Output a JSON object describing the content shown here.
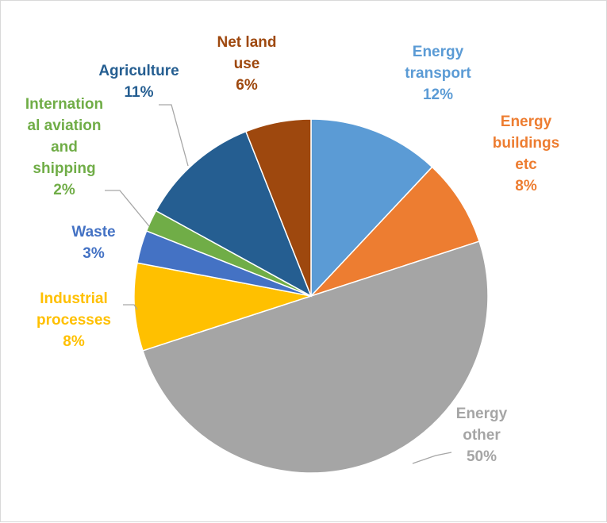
{
  "chart_data": {
    "type": "pie",
    "title": "",
    "slices": [
      {
        "label": "Energy transport",
        "label_lines": [
          "Energy",
          "transport",
          "12%"
        ],
        "value": 12,
        "percent_label": "12%",
        "color": "#5b9bd5"
      },
      {
        "label": "Energy buildings etc",
        "label_lines": [
          "Energy",
          "buildings",
          "etc",
          "8%"
        ],
        "value": 8,
        "percent_label": "8%",
        "color": "#ed7d31"
      },
      {
        "label": "Energy other",
        "label_lines": [
          "Energy",
          "other",
          "50%"
        ],
        "value": 50,
        "percent_label": "50%",
        "color": "#a5a5a5"
      },
      {
        "label": "Industrial processes",
        "label_lines": [
          "Industrial",
          "processes",
          "8%"
        ],
        "value": 8,
        "percent_label": "8%",
        "color": "#ffc000"
      },
      {
        "label": "Waste",
        "label_lines": [
          "Waste",
          "3%"
        ],
        "value": 3,
        "percent_label": "3%",
        "color": "#4472c4"
      },
      {
        "label": "International aviation and shipping",
        "label_lines": [
          "Internation",
          "al aviation",
          "and",
          "shipping",
          "2%"
        ],
        "value": 2,
        "percent_label": "2%",
        "color": "#70ad47"
      },
      {
        "label": "Agriculture",
        "label_lines": [
          "Agriculture",
          "11%"
        ],
        "value": 11,
        "percent_label": "11%",
        "color": "#255e91"
      },
      {
        "label": "Net land use",
        "label_lines": [
          "Net land",
          "use",
          "6%"
        ],
        "value": 6,
        "percent_label": "6%",
        "color": "#9e480e"
      }
    ],
    "legend": "none",
    "data_labels": "outside"
  }
}
